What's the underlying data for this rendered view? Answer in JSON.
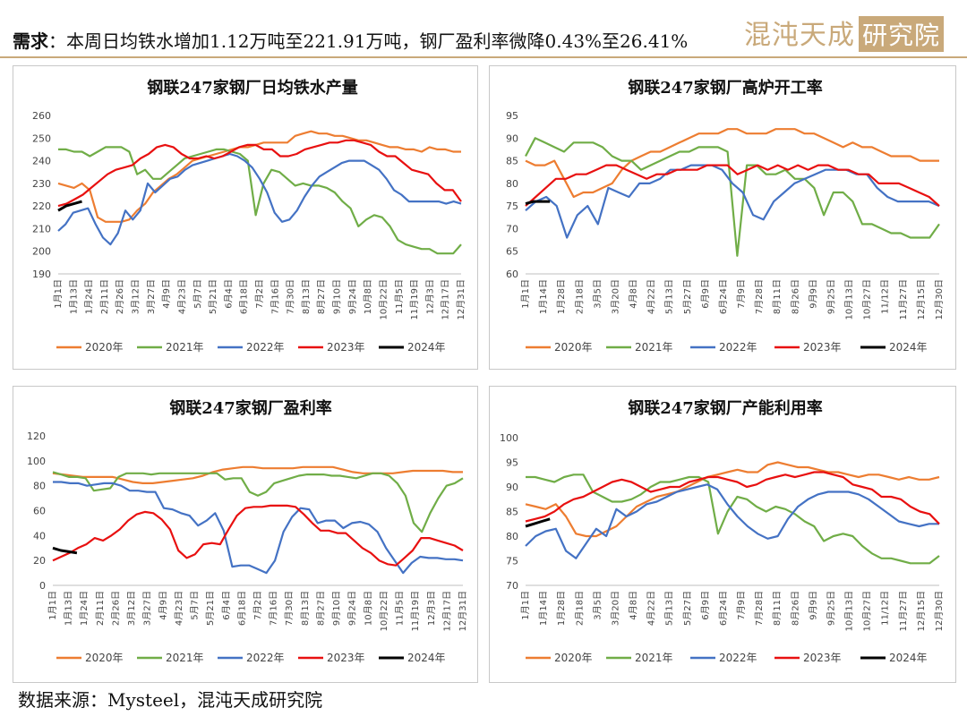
{
  "header": {
    "label": "需求",
    "text": "：本周日均铁水增加1.12万吨至221.91万吨，钢厂盈利率微降0.43%至26.41%",
    "brand_main": "混沌天成",
    "brand_box": "研究院"
  },
  "footer": {
    "text": "数据来源：Mysteel，混沌天成研究院"
  },
  "colors": {
    "2020年": "#ED7D31",
    "2021年": "#70AD47",
    "2022年": "#4472C4",
    "2023年": "#E81010",
    "2024年": "#000000",
    "brand": "#c9a97a"
  },
  "chart_data": [
    {
      "type": "line",
      "title": "钢联247家钢厂日均铁水产量",
      "ylim": [
        190,
        260
      ],
      "yticks": [
        190,
        200,
        210,
        220,
        230,
        240,
        250,
        260
      ],
      "xticks": [
        "1月1日",
        "1月13日",
        "1月24日",
        "2月11日",
        "2月26日",
        "3月12日",
        "3月27日",
        "4月9日",
        "4月23日",
        "5月7日",
        "5月21日",
        "6月4日",
        "6月18日",
        "7月2日",
        "7月16日",
        "7月30日",
        "8月13日",
        "8月27日",
        "9月10日",
        "9月24日",
        "10月8日",
        "10月22日",
        "11月5日",
        "11月19日",
        "12月3日",
        "12月17日",
        "12月31日"
      ],
      "series": [
        {
          "name": "2020年",
          "values": [
            230,
            229,
            228,
            230,
            227,
            215,
            213,
            213,
            213,
            214,
            218,
            221,
            226,
            229,
            232,
            234,
            237,
            240,
            241,
            242,
            243,
            244,
            245,
            246,
            246,
            247,
            248,
            248,
            248,
            248,
            251,
            252,
            253,
            252,
            252,
            251,
            251,
            250,
            249,
            249,
            248,
            247,
            246,
            246,
            245,
            245,
            244,
            246,
            245,
            245,
            244,
            244
          ]
        },
        {
          "name": "2021年",
          "values": [
            245,
            245,
            244,
            244,
            242,
            244,
            246,
            246,
            246,
            244,
            234,
            236,
            232,
            232,
            235,
            238,
            241,
            242,
            243,
            244,
            245,
            245,
            244,
            243,
            240,
            216,
            230,
            236,
            235,
            232,
            229,
            230,
            229,
            229,
            228,
            226,
            222,
            219,
            211,
            214,
            216,
            215,
            211,
            205,
            203,
            202,
            201,
            201,
            199,
            199,
            199,
            203
          ]
        },
        {
          "name": "2022年",
          "values": [
            209,
            212,
            217,
            218,
            219,
            212,
            206,
            203,
            208,
            218,
            214,
            218,
            230,
            226,
            229,
            232,
            233,
            236,
            238,
            239,
            240,
            241,
            242,
            243,
            242,
            240,
            237,
            232,
            226,
            217,
            213,
            214,
            218,
            224,
            229,
            233,
            235,
            237,
            239,
            240,
            240,
            240,
            238,
            236,
            232,
            227,
            225,
            222,
            222,
            222,
            222,
            222,
            221,
            222,
            221
          ]
        },
        {
          "name": "2023年",
          "values": [
            220,
            221,
            223,
            225,
            228,
            231,
            234,
            236,
            237,
            238,
            241,
            243,
            246,
            247,
            246,
            243,
            241,
            241,
            242,
            241,
            242,
            244,
            246,
            247,
            247,
            245,
            245,
            242,
            242,
            243,
            245,
            246,
            247,
            248,
            248,
            249,
            249,
            248,
            247,
            244,
            242,
            242,
            239,
            236,
            235,
            234,
            230,
            227,
            227,
            222
          ]
        },
        {
          "name": "2024年",
          "values": [
            218,
            220,
            221,
            222
          ]
        }
      ]
    },
    {
      "type": "line",
      "title": "钢联247家钢厂高炉开工率",
      "ylim": [
        60,
        95
      ],
      "yticks": [
        60,
        65,
        70,
        75,
        80,
        85,
        90,
        95
      ],
      "xticks": [
        "1月1日",
        "1月14日",
        "1月28日",
        "2月18日",
        "3月5日",
        "3月20日",
        "4月8日",
        "4月22日",
        "5月13日",
        "5月27日",
        "6月9日",
        "6月24日",
        "7月9日",
        "7月28日",
        "8月11日",
        "8月26日",
        "9月9日",
        "9月25日",
        "10月13日",
        "10月27日",
        "11/12日",
        "11月27日",
        "12月15日",
        "12月30日"
      ],
      "series": [
        {
          "name": "2020年",
          "values": [
            85,
            84,
            84,
            85,
            81,
            77,
            78,
            78,
            79,
            80,
            83,
            85,
            86,
            87,
            87,
            88,
            89,
            90,
            91,
            91,
            91,
            92,
            92,
            91,
            91,
            91,
            92,
            92,
            92,
            91,
            91,
            90,
            89,
            88,
            89,
            88,
            88,
            87,
            86,
            86,
            86,
            85,
            85,
            85
          ]
        },
        {
          "name": "2021年",
          "values": [
            86,
            90,
            89,
            88,
            87,
            89,
            89,
            89,
            88,
            86,
            85,
            85,
            83,
            84,
            85,
            86,
            87,
            87,
            88,
            88,
            88,
            87,
            64,
            84,
            84,
            82,
            82,
            83,
            81,
            81,
            79,
            73,
            78,
            78,
            76,
            71,
            71,
            70,
            69,
            69,
            68,
            68,
            68,
            71
          ]
        },
        {
          "name": "2022年",
          "values": [
            74,
            76,
            77,
            75,
            68,
            73,
            75,
            71,
            79,
            78,
            77,
            80,
            80,
            81,
            83,
            83,
            84,
            84,
            84,
            83,
            80,
            78,
            73,
            72,
            76,
            78,
            80,
            81,
            82,
            83,
            83,
            83,
            82,
            82,
            79,
            77,
            76,
            76,
            76,
            76,
            75
          ]
        },
        {
          "name": "2023年",
          "values": [
            75,
            77,
            79,
            81,
            81,
            82,
            82,
            83,
            84,
            84,
            83,
            82,
            81,
            82,
            82,
            83,
            83,
            83,
            84,
            84,
            84,
            82,
            83,
            84,
            83,
            84,
            83,
            84,
            83,
            84,
            84,
            83,
            83,
            82,
            82,
            80,
            80,
            80,
            79,
            78,
            77,
            75
          ]
        },
        {
          "name": "2024年",
          "values": [
            75.5,
            76,
            76,
            76
          ]
        }
      ]
    },
    {
      "type": "line",
      "title": "钢联247家钢厂盈利率",
      "ylim": [
        0,
        120
      ],
      "yticks": [
        0,
        20,
        40,
        60,
        80,
        100,
        120
      ],
      "xticks": [
        "1月1日",
        "1月13日",
        "1月24日",
        "2月11日",
        "2月26日",
        "3月12日",
        "3月27日",
        "4月9日",
        "4月23日",
        "5月7日",
        "5月21日",
        "6月4日",
        "6月18日",
        "7月2日",
        "7月16日",
        "7月30日",
        "8月13日",
        "8月27日",
        "9月10日",
        "9月24日",
        "10月8日",
        "10月22日",
        "11月5日",
        "11月19日",
        "12月3日",
        "12月17日",
        "12月31日"
      ],
      "series": [
        {
          "name": "2020年",
          "values": [
            90,
            89,
            88,
            87,
            87,
            87,
            87,
            85,
            83,
            82,
            82,
            83,
            84,
            85,
            86,
            88,
            91,
            93,
            94,
            95,
            95,
            94,
            94,
            94,
            94,
            95,
            95,
            95,
            95,
            93,
            91,
            90,
            90,
            90,
            90,
            91,
            92,
            92,
            92,
            92,
            91,
            91
          ]
        },
        {
          "name": "2021年",
          "values": [
            91,
            89,
            87,
            87,
            86,
            76,
            77,
            78,
            87,
            90,
            90,
            90,
            89,
            90,
            90,
            90,
            90,
            90,
            90,
            90,
            90,
            85,
            86,
            86,
            75,
            72,
            75,
            82,
            84,
            86,
            88,
            89,
            89,
            89,
            88,
            88,
            87,
            86,
            88,
            90,
            90,
            88,
            82,
            72,
            50,
            43,
            58,
            70,
            80,
            82,
            86
          ]
        },
        {
          "name": "2022年",
          "values": [
            83,
            83,
            82,
            82,
            80,
            81,
            82,
            82,
            80,
            76,
            76,
            75,
            75,
            62,
            61,
            58,
            56,
            48,
            52,
            58,
            44,
            15,
            16,
            16,
            13,
            10,
            20,
            43,
            55,
            62,
            61,
            50,
            52,
            52,
            46,
            50,
            51,
            49,
            43,
            30,
            20,
            10,
            18,
            23,
            22,
            22,
            21,
            21,
            20
          ]
        },
        {
          "name": "2023年",
          "values": [
            20,
            23,
            26,
            30,
            33,
            38,
            36,
            40,
            45,
            52,
            57,
            59,
            58,
            53,
            45,
            28,
            22,
            25,
            33,
            34,
            33,
            45,
            56,
            62,
            63,
            63,
            64,
            64,
            64,
            63,
            57,
            50,
            44,
            44,
            42,
            42,
            36,
            30,
            26,
            20,
            17,
            16,
            22,
            28,
            38,
            38,
            36,
            34,
            32,
            28
          ]
        },
        {
          "name": "2024年",
          "values": [
            30,
            28,
            27,
            26
          ]
        }
      ]
    },
    {
      "type": "line",
      "title": "钢联247家钢厂产能利用率",
      "ylim": [
        70,
        100
      ],
      "yticks": [
        70,
        75,
        80,
        85,
        90,
        95,
        100
      ],
      "xticks": [
        "1月1日",
        "1月14日",
        "1月28日",
        "2月18日",
        "3月5日",
        "3月20日",
        "4月8日",
        "4月22日",
        "5月13日",
        "5月27日",
        "6月9日",
        "6月24日",
        "7月9日",
        "7月28日",
        "8月11日",
        "8月26日",
        "9月9日",
        "9月25日",
        "10月13日",
        "10月27日",
        "11/12日",
        "11月27日",
        "12月15日",
        "12月30日"
      ],
      "series": [
        {
          "name": "2020年",
          "values": [
            86.5,
            86,
            85.5,
            86.5,
            84,
            80.5,
            80,
            80,
            81,
            82,
            84,
            86,
            87,
            88,
            88.5,
            89,
            90,
            91,
            92,
            92.5,
            93,
            93.5,
            93,
            93,
            94.5,
            95,
            94.5,
            94,
            94,
            93.5,
            93,
            93,
            92.5,
            92,
            92.5,
            92.5,
            92,
            91.5,
            92,
            91.5,
            91.5,
            92
          ]
        },
        {
          "name": "2021年",
          "values": [
            92,
            92,
            91.5,
            91,
            92,
            92.5,
            92.5,
            89,
            88,
            87,
            87,
            87.5,
            88.5,
            90,
            91,
            91,
            91.5,
            92,
            92,
            91,
            80.5,
            85,
            88,
            87.5,
            86,
            85,
            86,
            85.5,
            84.5,
            83,
            82,
            79,
            80,
            80.5,
            80,
            78,
            76.5,
            75.5,
            75.5,
            75,
            74.5,
            74.5,
            74.5,
            76
          ]
        },
        {
          "name": "2022年",
          "values": [
            78,
            80,
            81,
            81.5,
            77,
            75.5,
            78.5,
            81.5,
            80,
            85.5,
            84,
            85,
            86.5,
            87,
            88,
            89,
            89.5,
            90,
            90.5,
            89.5,
            86.5,
            84,
            82,
            80.5,
            79.5,
            80,
            83.5,
            86,
            87.5,
            88.5,
            89,
            89,
            89,
            88.5,
            87.5,
            86,
            84.5,
            83,
            82.5,
            82,
            82.5,
            82.5
          ]
        },
        {
          "name": "2023年",
          "values": [
            83,
            83.5,
            84,
            85,
            86.5,
            87.5,
            88,
            89,
            90,
            91,
            91.5,
            91,
            90,
            89,
            89.5,
            90,
            90,
            91,
            91.5,
            92,
            92,
            91.5,
            91,
            90,
            90.5,
            91.5,
            92,
            92.5,
            92,
            92.5,
            93,
            93,
            92.5,
            92,
            90.5,
            90,
            89.5,
            88,
            88,
            87.5,
            86,
            85,
            84.5,
            82.5
          ]
        },
        {
          "name": "2024年",
          "values": [
            82,
            82.5,
            83,
            83.5
          ]
        }
      ]
    }
  ]
}
